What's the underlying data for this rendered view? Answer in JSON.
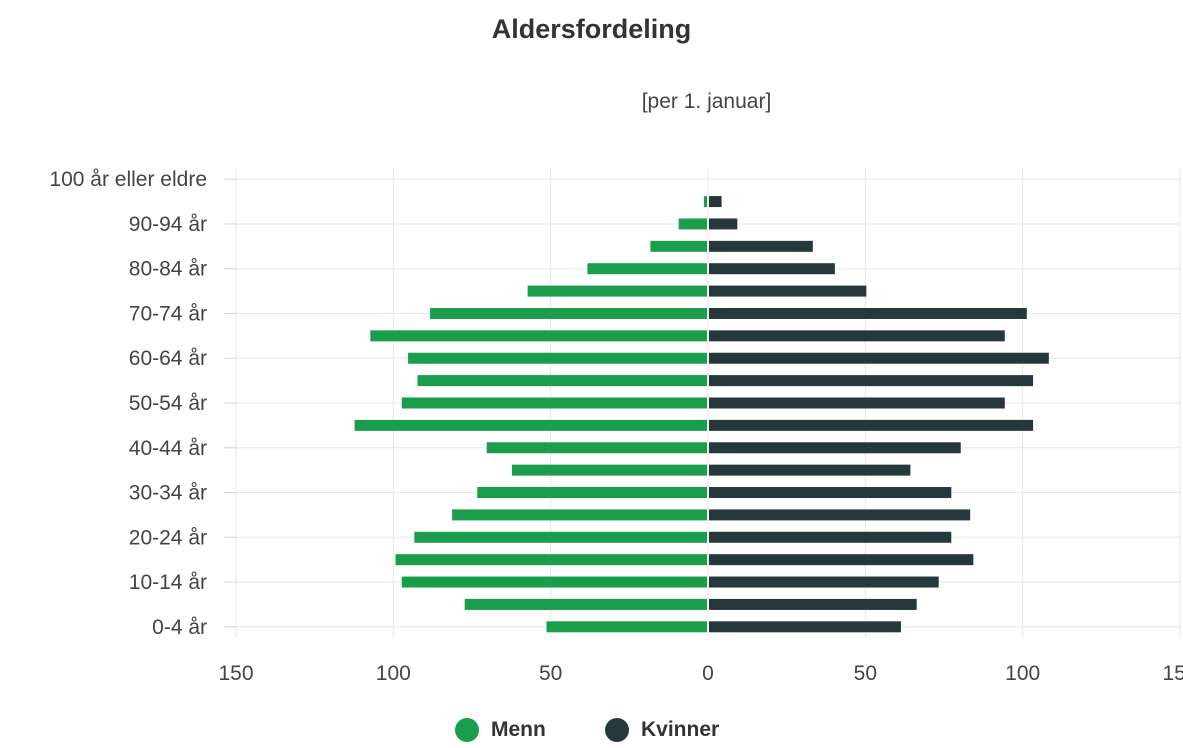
{
  "chart_data": {
    "type": "bar",
    "orientation": "horizontal",
    "layout": "population-pyramid",
    "title": "Aldersfordeling",
    "subtitle": "[per 1. januar]",
    "categories": [
      "0-4 år",
      "5-9 år",
      "10-14 år",
      "15-19 år",
      "20-24 år",
      "25-29 år",
      "30-34 år",
      "35-39 år",
      "40-44 år",
      "45-49 år",
      "50-54 år",
      "55-59 år",
      "60-64 år",
      "65-69 år",
      "70-74 år",
      "75-79 år",
      "80-84 år",
      "85-89 år",
      "90-94 år",
      "95-99 år",
      "100 år eller eldre"
    ],
    "visible_category_labels": [
      "0-4 år",
      "10-14 år",
      "20-24 år",
      "30-34 år",
      "40-44 år",
      "50-54 år",
      "60-64 år",
      "70-74 år",
      "80-84 år",
      "90-94 år",
      "100 år eller eldre"
    ],
    "series": [
      {
        "name": "Menn",
        "color": "#1b9e4b",
        "side": "left",
        "values": [
          51,
          77,
          97,
          99,
          93,
          81,
          73,
          62,
          70,
          112,
          97,
          92,
          95,
          107,
          88,
          57,
          38,
          18,
          9,
          1,
          0
        ]
      },
      {
        "name": "Kvinner",
        "color": "#25393d",
        "side": "right",
        "values": [
          61,
          66,
          73,
          84,
          77,
          83,
          77,
          64,
          80,
          103,
          94,
          103,
          108,
          94,
          101,
          50,
          40,
          33,
          9,
          4,
          0
        ]
      }
    ],
    "xlim": [
      -150,
      150
    ],
    "xticks": [
      150,
      100,
      50,
      0,
      50,
      100,
      150
    ],
    "grid": true,
    "legend_position": "bottom-center"
  }
}
